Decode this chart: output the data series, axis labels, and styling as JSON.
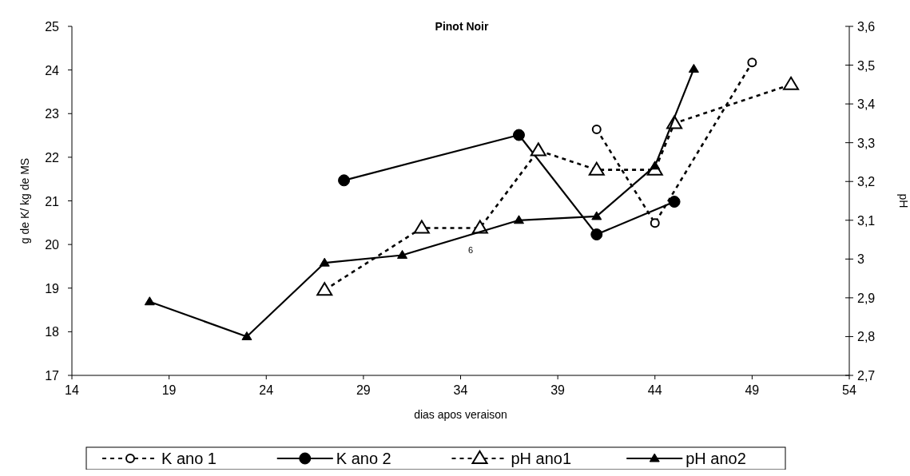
{
  "chart_data": {
    "type": "line",
    "title": "Pinot Noir",
    "xlabel": "dias apos veraison",
    "ylabel": "g de K/ kg de MS",
    "y2label": "pH",
    "xlim": [
      14,
      54
    ],
    "xticks": [
      14,
      19,
      24,
      29,
      34,
      39,
      44,
      49,
      54
    ],
    "ylim": [
      17,
      25
    ],
    "yticks": [
      17,
      18,
      19,
      20,
      21,
      22,
      23,
      24,
      25
    ],
    "y2lim": [
      2.7,
      3.6
    ],
    "y2ticks": [
      {
        "value": 2.7,
        "label": "2,7"
      },
      {
        "value": 2.8,
        "label": "2,8"
      },
      {
        "value": 2.9,
        "label": "2,9"
      },
      3,
      {
        "value": 3.1,
        "label": "3,1"
      },
      {
        "value": 3.2,
        "label": "3,2"
      },
      {
        "value": 3.3,
        "label": "3,3"
      },
      {
        "value": 3.4,
        "label": "3,4"
      },
      {
        "value": 3.5,
        "label": "3,5"
      },
      {
        "value": 3.6,
        "label": "3,6"
      }
    ],
    "grid": false,
    "legend": "bottom",
    "annotations": [
      "6"
    ],
    "series": [
      {
        "name": "K ano 1",
        "color": "#000000",
        "marker": "circle",
        "line_style": "dashed",
        "x": [
          41,
          44,
          49
        ],
        "values": [
          22.64,
          20.49,
          24.17
        ]
      },
      {
        "name": "K ano 2",
        "color": "#000000",
        "marker": "circle",
        "line_style": "solid",
        "x": [
          28,
          37,
          41,
          45
        ],
        "values": [
          21.47,
          22.51,
          20.23,
          20.98
        ]
      },
      {
        "name": "pH ano1",
        "color": "#000000",
        "marker": "triangle",
        "line_style": "dashed",
        "axis": "y2",
        "x": [
          27,
          32,
          35,
          38,
          41,
          44,
          45,
          51
        ],
        "values": [
          2.92,
          3.08,
          3.08,
          3.28,
          3.23,
          3.23,
          3.35,
          3.45
        ]
      },
      {
        "name": "pH ano2",
        "color": "#000000",
        "marker": "triangle",
        "line_style": "solid",
        "axis": "y2",
        "x": [
          18,
          23,
          27,
          31,
          37,
          41,
          44,
          46
        ],
        "values": [
          2.89,
          2.8,
          2.99,
          3.01,
          3.1,
          3.11,
          3.24,
          3.49
        ]
      }
    ]
  }
}
